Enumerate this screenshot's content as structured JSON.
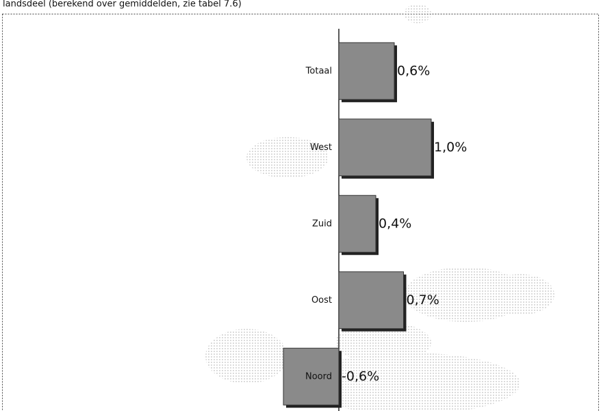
{
  "chart_data": {
    "type": "bar",
    "orientation": "horizontal",
    "title": "landsdeel (berekend over gemiddelden, zie tabel 7.6)",
    "categories": [
      "Totaal",
      "West",
      "Zuid",
      "Oost",
      "Noord"
    ],
    "values": [
      0.6,
      1.0,
      0.4,
      0.7,
      -0.6
    ],
    "value_labels": [
      "0,6%",
      "1,0%",
      "0,4%",
      "0,7%",
      "-0,6%"
    ],
    "color": "#8a8a8a"
  }
}
